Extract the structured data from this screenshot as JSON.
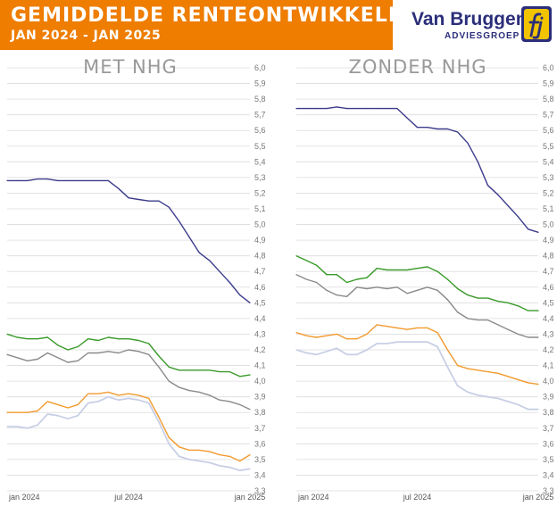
{
  "header": {
    "title": "GEMIDDELDE RENTEONTWIKKELING",
    "subtitle": "JAN 2024 - JAN 2025"
  },
  "logo": {
    "name": "Van Bruggen",
    "tagline": "ADVIESGROEP",
    "mark": "fj"
  },
  "colors": {
    "accent": "#ee7d00",
    "brand": "#2b2e7a",
    "series": [
      "#3c3c8c",
      "#3a9a2a",
      "#8a8a8a",
      "#f29a2e",
      "#c8cfe6"
    ]
  },
  "chart_data": [
    {
      "type": "line",
      "title": "MET NHG",
      "x_ticks": [
        "jan 2024",
        "jul 2024",
        "jan 2025"
      ],
      "x": [
        0,
        0.5,
        1,
        1.5,
        2,
        2.5,
        3,
        3.5,
        4,
        4.5,
        5,
        5.5,
        6,
        6.5,
        7,
        7.5,
        8,
        8.5,
        9,
        9.5,
        10,
        10.5,
        11,
        11.5,
        12
      ],
      "ylim": [
        3.3,
        6.0
      ],
      "y_ticks": [
        "3,3",
        "3,4",
        "3,5",
        "3,6",
        "3,7",
        "3,8",
        "3,9",
        "4,0",
        "4,1",
        "4,2",
        "4,3",
        "4,4",
        "4,5",
        "4,6",
        "4,7",
        "4,8",
        "4,9",
        "5,0",
        "5,1",
        "5,2",
        "5,3",
        "5,4",
        "5,5",
        "5,6",
        "5,7",
        "5,8",
        "5,9",
        "6,0"
      ],
      "grid": true,
      "series": [
        {
          "values": [
            5.28,
            5.28,
            5.28,
            5.29,
            5.29,
            5.28,
            5.28,
            5.28,
            5.28,
            5.28,
            5.28,
            5.23,
            5.17,
            5.16,
            5.15,
            5.15,
            5.11,
            5.02,
            4.92,
            4.82,
            4.77,
            4.7,
            4.63,
            4.55,
            4.5
          ]
        },
        {
          "values": [
            4.3,
            4.28,
            4.27,
            4.27,
            4.28,
            4.23,
            4.2,
            4.22,
            4.27,
            4.26,
            4.28,
            4.27,
            4.27,
            4.26,
            4.24,
            4.16,
            4.09,
            4.07,
            4.07,
            4.07,
            4.07,
            4.06,
            4.06,
            4.03,
            4.04
          ]
        },
        {
          "values": [
            4.17,
            4.15,
            4.13,
            4.14,
            4.18,
            4.15,
            4.12,
            4.13,
            4.18,
            4.18,
            4.19,
            4.18,
            4.2,
            4.19,
            4.17,
            4.09,
            4.0,
            3.96,
            3.94,
            3.93,
            3.91,
            3.88,
            3.87,
            3.85,
            3.82
          ]
        },
        {
          "values": [
            3.8,
            3.8,
            3.8,
            3.81,
            3.87,
            3.85,
            3.83,
            3.85,
            3.92,
            3.92,
            3.93,
            3.91,
            3.92,
            3.91,
            3.89,
            3.77,
            3.64,
            3.58,
            3.56,
            3.56,
            3.55,
            3.53,
            3.52,
            3.49,
            3.53
          ]
        },
        {
          "values": [
            3.71,
            3.71,
            3.7,
            3.72,
            3.79,
            3.78,
            3.76,
            3.78,
            3.86,
            3.87,
            3.9,
            3.88,
            3.89,
            3.88,
            3.86,
            3.74,
            3.6,
            3.52,
            3.5,
            3.49,
            3.48,
            3.46,
            3.45,
            3.43,
            3.44
          ]
        }
      ]
    },
    {
      "type": "line",
      "title": "ZONDER NHG",
      "x_ticks": [
        "jan 2024",
        "jul 2024",
        "jan 2025"
      ],
      "x": [
        0,
        0.5,
        1,
        1.5,
        2,
        2.5,
        3,
        3.5,
        4,
        4.5,
        5,
        5.5,
        6,
        6.5,
        7,
        7.5,
        8,
        8.5,
        9,
        9.5,
        10,
        10.5,
        11,
        11.5,
        12
      ],
      "ylim": [
        3.3,
        6.0
      ],
      "y_ticks": [
        "3,3",
        "3,4",
        "3,5",
        "3,6",
        "3,7",
        "3,8",
        "3,9",
        "4,0",
        "4,1",
        "4,2",
        "4,3",
        "4,4",
        "4,5",
        "4,6",
        "4,7",
        "4,8",
        "4,9",
        "5,0",
        "5,1",
        "5,2",
        "5,3",
        "5,4",
        "5,5",
        "5,6",
        "5,7",
        "5,8",
        "5,9",
        "6,0"
      ],
      "grid": true,
      "series": [
        {
          "values": [
            5.74,
            5.74,
            5.74,
            5.74,
            5.75,
            5.74,
            5.74,
            5.74,
            5.74,
            5.74,
            5.74,
            5.68,
            5.62,
            5.62,
            5.61,
            5.61,
            5.59,
            5.52,
            5.4,
            5.25,
            5.19,
            5.12,
            5.05,
            4.97,
            4.95
          ]
        },
        {
          "values": [
            4.8,
            4.77,
            4.74,
            4.68,
            4.68,
            4.63,
            4.65,
            4.66,
            4.72,
            4.71,
            4.71,
            4.71,
            4.72,
            4.73,
            4.7,
            4.65,
            4.59,
            4.55,
            4.53,
            4.53,
            4.51,
            4.5,
            4.48,
            4.45,
            4.45
          ]
        },
        {
          "values": [
            4.68,
            4.65,
            4.63,
            4.58,
            4.55,
            4.54,
            4.6,
            4.59,
            4.6,
            4.59,
            4.6,
            4.56,
            4.58,
            4.6,
            4.58,
            4.52,
            4.44,
            4.4,
            4.39,
            4.39,
            4.36,
            4.33,
            4.3,
            4.28,
            4.28
          ]
        },
        {
          "values": [
            4.31,
            4.29,
            4.28,
            4.29,
            4.3,
            4.27,
            4.27,
            4.3,
            4.36,
            4.35,
            4.34,
            4.33,
            4.34,
            4.34,
            4.31,
            4.2,
            4.1,
            4.08,
            4.07,
            4.06,
            4.05,
            4.03,
            4.01,
            3.99,
            3.98
          ]
        },
        {
          "values": [
            4.2,
            4.18,
            4.17,
            4.19,
            4.21,
            4.17,
            4.17,
            4.2,
            4.24,
            4.24,
            4.25,
            4.25,
            4.25,
            4.25,
            4.22,
            4.09,
            3.97,
            3.93,
            3.91,
            3.9,
            3.89,
            3.87,
            3.85,
            3.82,
            3.82
          ]
        }
      ]
    }
  ]
}
